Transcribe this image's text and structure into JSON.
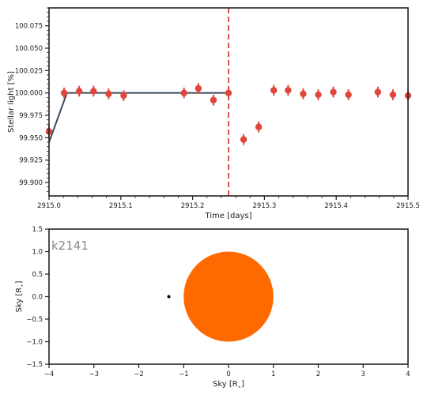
{
  "colors": {
    "points": "#e0463a",
    "model_line": "#3a4a5c",
    "transit_marker": "#d9534f",
    "star": "#ff6a00",
    "planet": "#000000",
    "axes": "#222222",
    "label_watermark": "#8a8a8a"
  },
  "chart_data": [
    {
      "type": "scatter",
      "xlabel": "Time [days]",
      "ylabel": "Stellar light [%]",
      "xlim": [
        2915.0,
        2915.5
      ],
      "ylim": [
        99.885,
        100.095
      ],
      "xticks": [
        2915.0,
        2915.1,
        2915.2,
        2915.3,
        2915.4,
        2915.5
      ],
      "xtick_labels": [
        "2915.0",
        "2915.1",
        "2915.2",
        "2915.3",
        "2915.4",
        "2915.5"
      ],
      "yticks": [
        99.9,
        99.925,
        99.95,
        99.975,
        100.0,
        100.025,
        100.05,
        100.075
      ],
      "ytick_labels": [
        "99.900",
        "99.925",
        "99.950",
        "99.975",
        "100.000",
        "100.025",
        "100.050",
        "100.075"
      ],
      "grid": false,
      "series": [
        {
          "kind": "points_with_errorbars",
          "x": [
            2915.0,
            2915.021,
            2915.042,
            2915.062,
            2915.083,
            2915.104,
            2915.188,
            2915.208,
            2915.229,
            2915.25,
            2915.271,
            2915.292,
            2915.313,
            2915.333,
            2915.354,
            2915.375,
            2915.396,
            2915.417,
            2915.458,
            2915.479,
            2915.5
          ],
          "y": [
            99.957,
            100.0,
            100.002,
            100.002,
            99.999,
            99.997,
            100.0,
            100.005,
            99.992,
            100.0,
            99.948,
            99.962,
            100.003,
            100.003,
            99.999,
            99.998,
            100.001,
            99.998,
            100.001,
            99.998,
            99.997
          ],
          "yerr": [
            0.006,
            0.006,
            0.006,
            0.006,
            0.006,
            0.006,
            0.006,
            0.006,
            0.006,
            0.006,
            0.006,
            0.006,
            0.006,
            0.006,
            0.006,
            0.006,
            0.006,
            0.006,
            0.006,
            0.006,
            0.006
          ]
        },
        {
          "kind": "model_line",
          "x": [
            2915.0,
            2915.025,
            2915.25
          ],
          "y": [
            99.945,
            100.0,
            100.0
          ]
        }
      ],
      "vline": {
        "x": 2915.25,
        "style": "dashed"
      }
    },
    {
      "type": "scatter",
      "xlabel": "Sky [R$_\\star$]",
      "ylabel": "Sky [R$_\\star$]",
      "xlim": [
        -4,
        4
      ],
      "ylim": [
        -1.5,
        1.5
      ],
      "xticks": [
        -4,
        -3,
        -2,
        -1,
        0,
        1,
        2,
        3,
        4
      ],
      "xtick_labels": [
        "−4",
        "−3",
        "−2",
        "−1",
        "0",
        "1",
        "2",
        "3",
        "4"
      ],
      "yticks": [
        -1.5,
        -1.0,
        -0.5,
        0.0,
        0.5,
        1.0,
        1.5
      ],
      "ytick_labels": [
        "−1.5",
        "−1.0",
        "−0.5",
        "0.0",
        "0.5",
        "1.0",
        "1.5"
      ],
      "grid": false,
      "annotation": "k2141",
      "star": {
        "x": 0,
        "y": 0,
        "radius": 1.0
      },
      "planet": {
        "x": -1.33,
        "y": 0.0,
        "radius": 0.03
      }
    }
  ]
}
